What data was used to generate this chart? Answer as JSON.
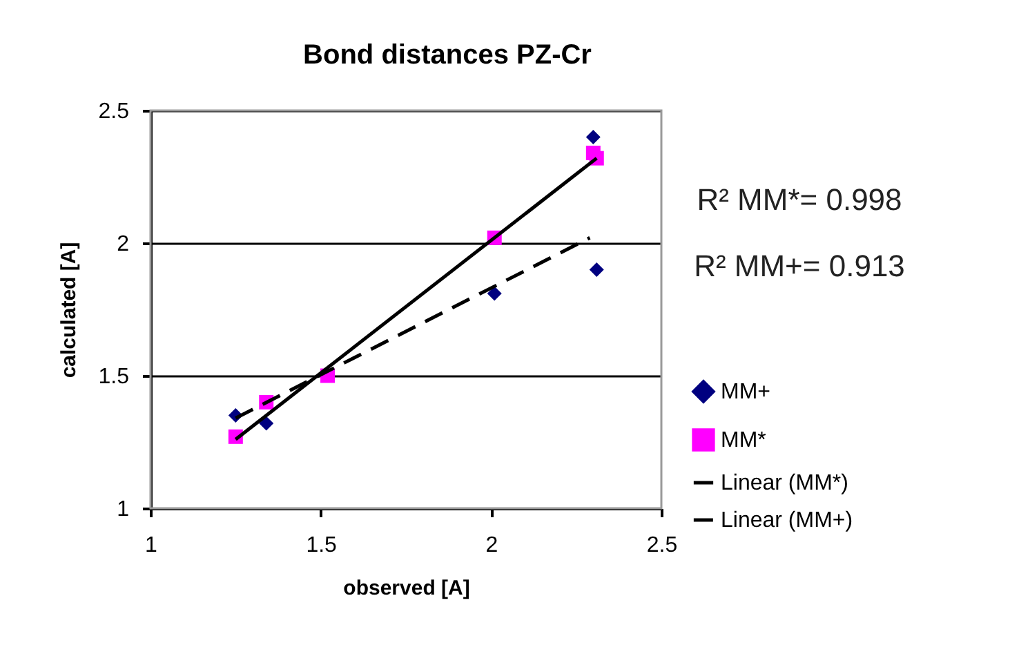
{
  "chart_data": {
    "type": "scatter",
    "title": "Bond distances PZ-Cr",
    "xlabel": "observed [A]",
    "ylabel": "calculated [A]",
    "xlim": [
      1,
      2.5
    ],
    "xticks": [
      1,
      1.5,
      2,
      2.5
    ],
    "ylim": [
      1,
      2.5
    ],
    "yticks": [
      1,
      1.5,
      2,
      2.5
    ],
    "grid": "y",
    "legend": "right",
    "annotations": [
      "R² MM*= 0.998",
      "R² MM+= 0.913"
    ],
    "x": [
      1.25,
      1.34,
      1.52,
      2.01,
      2.3,
      2.31
    ],
    "series": [
      {
        "name": "MM+",
        "marker": "diamond",
        "color": "#000080",
        "values": [
          1.35,
          1.32,
          null,
          1.81,
          2.4,
          1.9
        ]
      },
      {
        "name": "MM*",
        "marker": "square",
        "color": "#ff00ff",
        "values": [
          1.27,
          1.4,
          1.5,
          2.02,
          2.34,
          2.32
        ]
      },
      {
        "name": "Linear (MM*)",
        "type": "line",
        "line_style": "solid",
        "color": "#000000",
        "x": [
          1.25,
          2.31
        ],
        "values": [
          1.26,
          2.32
        ]
      },
      {
        "name": "Linear (MM+)",
        "type": "line",
        "line_style": "dashed",
        "color": "#000000",
        "x": [
          1.25,
          2.29
        ],
        "values": [
          1.34,
          2.02
        ]
      }
    ]
  }
}
